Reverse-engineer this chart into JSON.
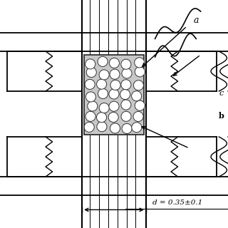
{
  "bg_color": "#ffffff",
  "line_color": "#000000",
  "figsize": [
    3.2,
    3.2
  ],
  "dpi": 100,
  "label_a": "a",
  "label_d": "d = 0.35±0.1"
}
